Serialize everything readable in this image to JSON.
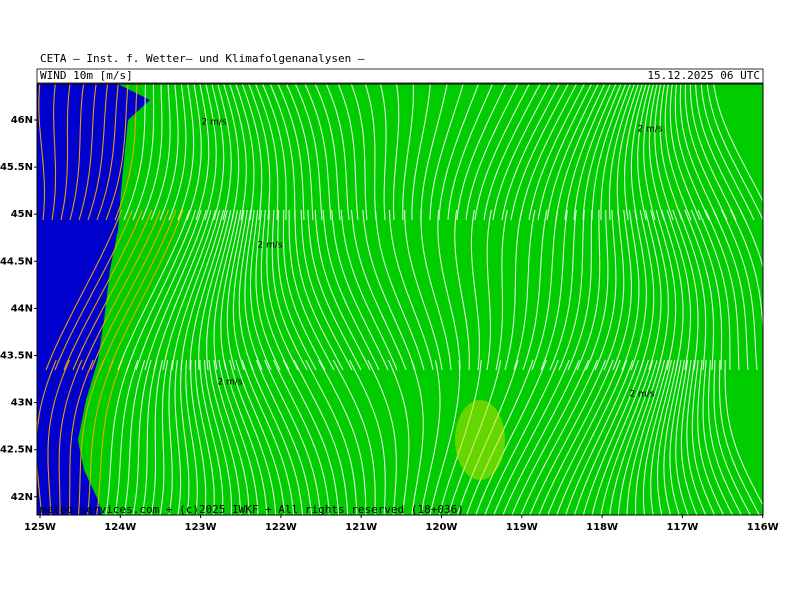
{
  "header": {
    "title": "CETA — Inst. f. Wetter— und Klimafolgenanalysen —",
    "variable": "WIND 10m [m/s]",
    "datetime": "15.12.2025 06 UTC"
  },
  "axes": {
    "y_labels": [
      "46N",
      "45.5N",
      "45N",
      "44.5N",
      "44N",
      "43.5N",
      "43N",
      "42.5N",
      "42N"
    ],
    "x_labels": [
      "125W",
      "124W",
      "123W",
      "122W",
      "121W",
      "120W",
      "119W",
      "118W",
      "117W",
      "116W"
    ]
  },
  "contour_labels": [
    "2 m/s",
    "2 m/s",
    "2 m/s",
    "2 m/s",
    "2 m/s"
  ],
  "footer": {
    "credit": "meteo-services.com + (c)2025 IWKF + All rights reserved (18+036)"
  }
}
